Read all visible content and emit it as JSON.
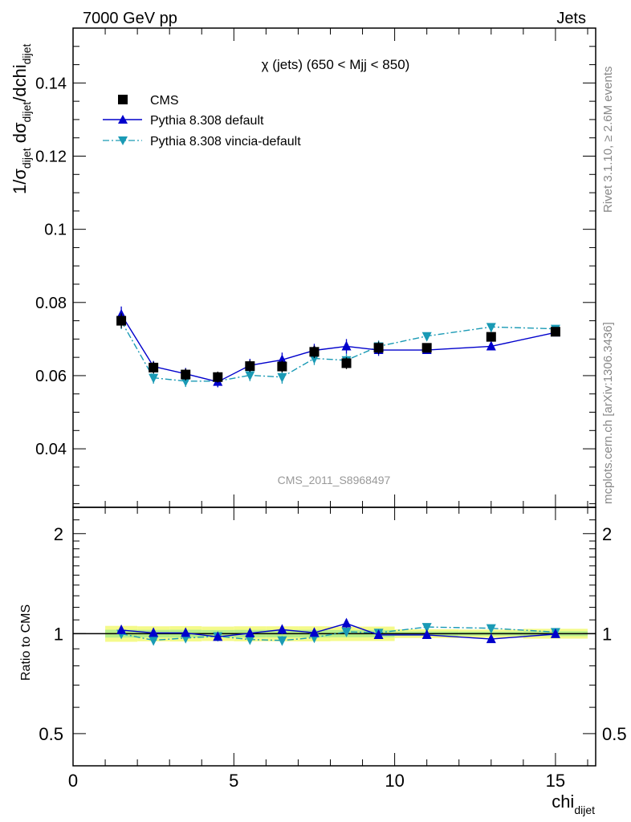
{
  "header": {
    "left": "7000 GeV pp",
    "right": "Jets"
  },
  "side_labels": {
    "rivet": "Rivet 3.1.10, ≥ 2.6M events",
    "mcplots": "mcplots.cern.ch [arXiv:1306.3436]"
  },
  "chart_data": [
    {
      "type": "scatter",
      "title": "χ (jets) (650 < Mjj <  850)",
      "watermark": "CMS_2011_S8968497",
      "ylabel": "1/σ_dijet dσ_dijet/dchi_dijet",
      "ylim": [
        0.024,
        0.155
      ],
      "xlim": [
        0,
        16.25
      ],
      "yticks": [
        0.04,
        0.06,
        0.08,
        0.1,
        0.12,
        0.14
      ],
      "ytick_labels": [
        "0.04",
        "0.06",
        "0.08",
        "0.1",
        "0.12",
        "0.14"
      ],
      "legend_position": "top-left",
      "x": [
        1.5,
        2.5,
        3.5,
        4.5,
        5.5,
        6.5,
        7.5,
        8.5,
        9.5,
        11,
        13,
        15
      ],
      "series": [
        {
          "name": "CMS",
          "color": "#000000",
          "marker": "square",
          "values": [
            0.075,
            0.0622,
            0.0603,
            0.0596,
            0.0626,
            0.0625,
            0.0665,
            0.0634,
            0.0676,
            0.0676,
            0.0706,
            0.072
          ],
          "errors": [
            0.002,
            0.0016,
            0.0016,
            0.0015,
            0.0016,
            0.0016,
            0.0017,
            0.0016,
            0.0017,
            0.001,
            0.001,
            0.0012
          ]
        },
        {
          "name": "Pythia 8.308 default",
          "color": "#0000cc",
          "marker": "triangle-up",
          "line": "solid",
          "values": [
            0.0767,
            0.0625,
            0.0605,
            0.0583,
            0.0628,
            0.0643,
            0.0669,
            0.068,
            0.067,
            0.067,
            0.068,
            0.0718
          ],
          "errors": [
            0.0022,
            0.0015,
            0.0016,
            0.0015,
            0.0018,
            0.002,
            0.0018,
            0.002,
            0.0016,
            0.001,
            0.0008,
            0.001
          ]
        },
        {
          "name": "Pythia 8.308 vincia-default",
          "color": "#1a9ab5",
          "marker": "triangle-down",
          "line": "dashdot",
          "values": [
            0.0749,
            0.0594,
            0.0585,
            0.0585,
            0.0601,
            0.0596,
            0.0647,
            0.0642,
            0.068,
            0.0708,
            0.0733,
            0.0728
          ],
          "errors": [
            0.0022,
            0.0016,
            0.0016,
            0.0016,
            0.0016,
            0.0018,
            0.0018,
            0.0018,
            0.0016,
            0.001,
            0.0008,
            0.001
          ]
        }
      ]
    },
    {
      "type": "scatter",
      "title": "",
      "xlabel": "chi_dijet",
      "ylabel": "Ratio to CMS",
      "ylog": true,
      "ylim": [
        0.4,
        2.4
      ],
      "xlim": [
        0,
        16.25
      ],
      "yticks": [
        0.5,
        1,
        2
      ],
      "ytick_labels": [
        "0.5",
        "1",
        "2"
      ],
      "xticks": [
        0,
        5,
        10,
        15
      ],
      "xtick_labels": [
        "0",
        "5",
        "10",
        "15"
      ],
      "x": [
        1.5,
        2.5,
        3.5,
        4.5,
        5.5,
        6.5,
        7.5,
        8.5,
        9.5,
        11,
        13,
        15
      ],
      "x_edges": [
        1,
        2,
        3,
        4,
        5,
        6,
        7,
        8,
        9,
        10,
        12,
        14,
        16
      ],
      "band_inner": [
        0.027,
        0.026,
        0.027,
        0.025,
        0.026,
        0.026,
        0.026,
        0.025,
        0.025,
        0.015,
        0.014,
        0.017
      ],
      "band_outer": [
        0.055,
        0.052,
        0.053,
        0.05,
        0.052,
        0.052,
        0.052,
        0.05,
        0.05,
        0.03,
        0.028,
        0.034
      ],
      "series": [
        {
          "name": "Pythia 8.308 default",
          "color": "#0000cc",
          "marker": "triangle-up",
          "line": "solid",
          "values": [
            1.025,
            1.005,
            1.005,
            0.978,
            1.003,
            1.028,
            1.006,
            1.073,
            0.991,
            0.991,
            0.963,
            0.997
          ],
          "errors": [
            0.03,
            0.024,
            0.026,
            0.025,
            0.028,
            0.032,
            0.027,
            0.032,
            0.024,
            0.015,
            0.012,
            0.014
          ]
        },
        {
          "name": "Pythia 8.308 vincia-default",
          "color": "#1a9ab5",
          "marker": "triangle-down",
          "line": "dashdot",
          "values": [
            0.999,
            0.955,
            0.97,
            0.982,
            0.96,
            0.954,
            0.973,
            1.013,
            1.006,
            1.047,
            1.038,
            1.011
          ],
          "errors": [
            0.03,
            0.026,
            0.026,
            0.026,
            0.026,
            0.029,
            0.027,
            0.028,
            0.024,
            0.015,
            0.012,
            0.014
          ]
        }
      ]
    }
  ]
}
